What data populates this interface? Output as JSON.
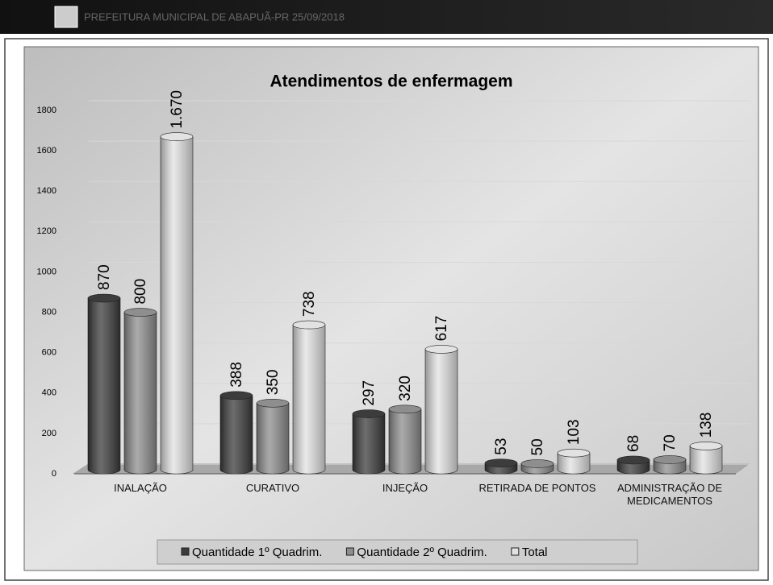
{
  "header": {
    "title": "PREFEITURA MUNICIPAL DE ABAPUÃ-PR 25/09/2018"
  },
  "chart_data": {
    "type": "bar",
    "title": "Atendimentos de enfermagem",
    "categories": [
      "INALAÇÃO",
      "CURATIVO",
      "INJEÇÃO",
      "RETIRADA DE PONTOS",
      "ADMINISTRAÇÃO DE MEDICAMENTOS"
    ],
    "series": [
      {
        "name": "Quantidade 1º Quadrim.",
        "color": "#3c3c3c",
        "values": [
          870,
          388,
          297,
          53,
          68
        ]
      },
      {
        "name": "Quantidade 2º Quadrim.",
        "color": "#8e8e8e",
        "values": [
          800,
          350,
          320,
          50,
          70
        ]
      },
      {
        "name": "Total",
        "color": "#e2e2e2",
        "values": [
          1670,
          738,
          617,
          103,
          138
        ],
        "value_labels": [
          "1.670",
          "738",
          "617",
          "103",
          "138"
        ]
      }
    ],
    "ylim": [
      0,
      1800
    ],
    "yticks": [
      0,
      200,
      400,
      600,
      800,
      1000,
      1200,
      1400,
      1600,
      1800
    ],
    "grid": true,
    "legend": "bottom"
  }
}
